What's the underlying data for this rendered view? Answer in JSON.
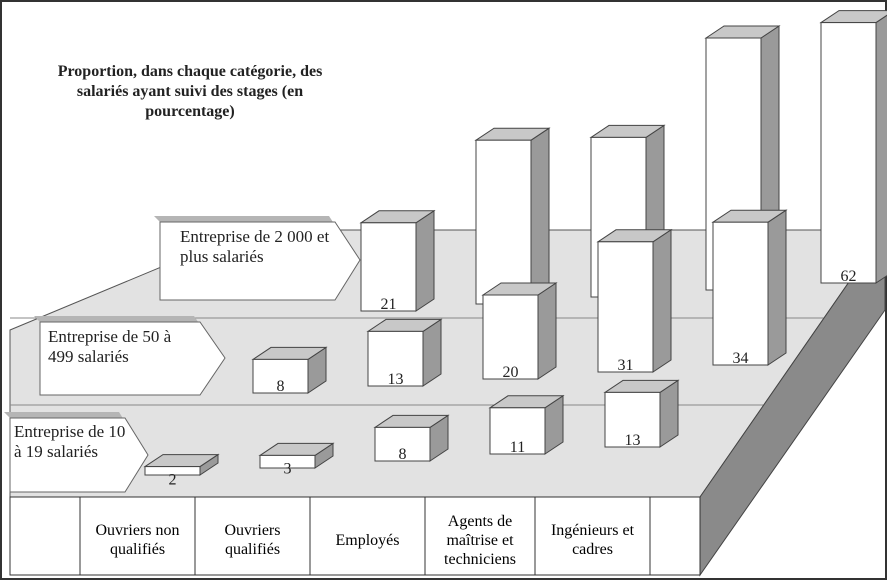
{
  "chart_data": {
    "type": "bar3d",
    "title": "Proportion, dans chaque catégorie, des salariés ayant suivi des stages (en pourcentage)",
    "categories": [
      "Ouvriers non qualifiés",
      "Ouvriers qualifiés",
      "Employés",
      "Agents de maîtrise et techniciens",
      "Ingénieurs et cadres"
    ],
    "series": [
      {
        "name": "Entreprise de 10 à 19 salariés",
        "color": "#ffffff",
        "values": [
          2,
          3,
          8,
          11,
          13
        ]
      },
      {
        "name": "Entreprise de 50 à 499 salariés",
        "color": "#ffffff",
        "values": [
          8,
          13,
          20,
          31,
          34
        ]
      },
      {
        "name": "Entreprise de 2 000 et plus salariés",
        "color": "#ffffff",
        "values": [
          21,
          39,
          38,
          60,
          62
        ]
      }
    ]
  }
}
